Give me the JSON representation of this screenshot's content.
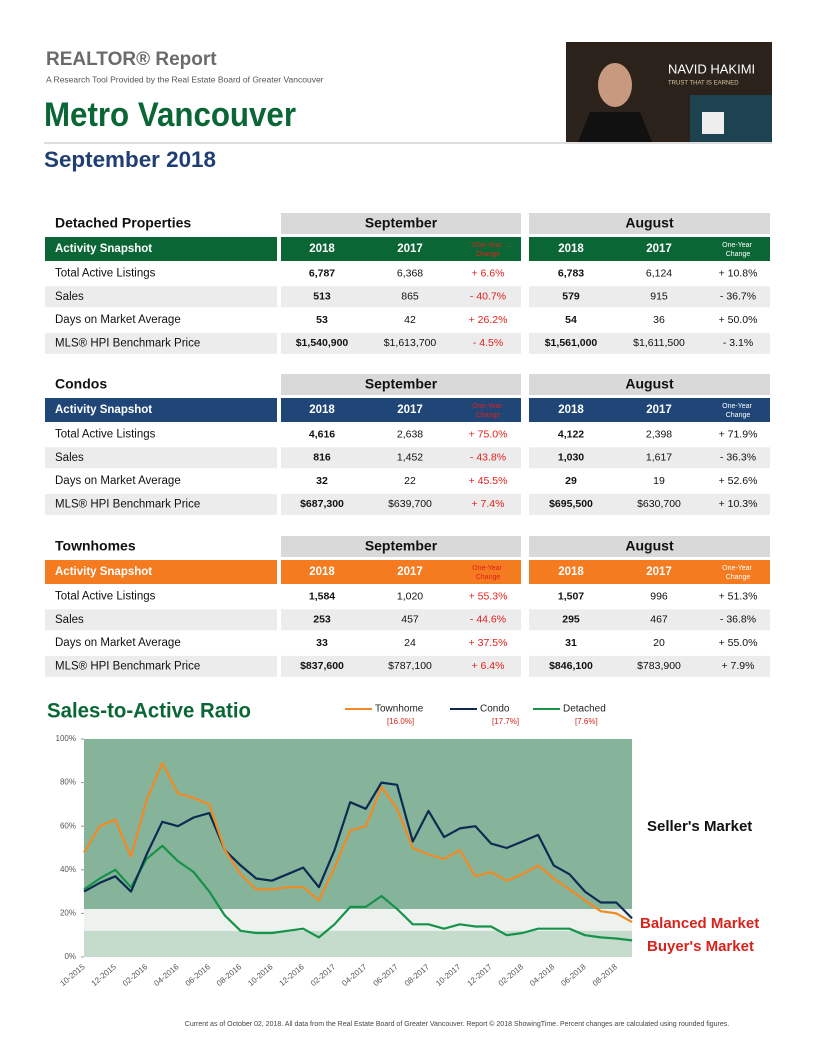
{
  "header": {
    "title": "REALTOR® Report",
    "subtitle": "A Research Tool Provided by the Real Estate Board of Greater Vancouver",
    "region": "Metro Vancouver",
    "period": "September 2018"
  },
  "agent": {
    "name": "NAVID HAKIMI",
    "tagline": "TRUST THAT IS EARNED"
  },
  "groups": [
    "September",
    "August"
  ],
  "columns": [
    "Activity Snapshot",
    "2018",
    "2017",
    "One-Year Change"
  ],
  "row_labels": [
    "Total Active Listings",
    "Sales",
    "Days on Market Average",
    "MLS® HPI Benchmark Price"
  ],
  "tables": [
    {
      "title": "Detached Properties",
      "color": "#0b6636",
      "rows": [
        [
          "6,787",
          "6,368",
          "+ 6.6%",
          "6,783",
          "6,124",
          "+ 10.8%"
        ],
        [
          "513",
          "865",
          "- 40.7%",
          "579",
          "915",
          "- 36.7%"
        ],
        [
          "53",
          "42",
          "+ 26.2%",
          "54",
          "36",
          "+ 50.0%"
        ],
        [
          "$1,540,900",
          "$1,613,700",
          "- 4.5%",
          "$1,561,000",
          "$1,611,500",
          "- 3.1%"
        ]
      ]
    },
    {
      "title": "Condos",
      "color": "#1f4677",
      "rows": [
        [
          "4,616",
          "2,638",
          "+ 75.0%",
          "4,122",
          "2,398",
          "+ 71.9%"
        ],
        [
          "816",
          "1,452",
          "- 43.8%",
          "1,030",
          "1,617",
          "- 36.3%"
        ],
        [
          "32",
          "22",
          "+ 45.5%",
          "29",
          "19",
          "+ 52.6%"
        ],
        [
          "$687,300",
          "$639,700",
          "+ 7.4%",
          "$695,500",
          "$630,700",
          "+ 10.3%"
        ]
      ]
    },
    {
      "title": "Townhomes",
      "color": "#f47b20",
      "rows": [
        [
          "1,584",
          "1,020",
          "+ 55.3%",
          "1,507",
          "996",
          "+ 51.3%"
        ],
        [
          "253",
          "457",
          "- 44.6%",
          "295",
          "467",
          "- 36.8%"
        ],
        [
          "33",
          "24",
          "+ 37.5%",
          "31",
          "20",
          "+ 55.0%"
        ],
        [
          "$837,600",
          "$787,100",
          "+ 6.4%",
          "$846,100",
          "$783,900",
          "+ 7.9%"
        ]
      ]
    }
  ],
  "chart_data": {
    "type": "line",
    "title": "Sales-to-Active Ratio",
    "categories": [
      "10-2015",
      null,
      "12-2015",
      null,
      "02-2016",
      null,
      "04-2016",
      null,
      "06-2016",
      null,
      "08-2016",
      null,
      "10-2016",
      null,
      "12-2016",
      null,
      "02-2017",
      null,
      "04-2017",
      null,
      "06-2017",
      null,
      "08-2017",
      null,
      "10-2017",
      null,
      "12-2017",
      null,
      "02-2018",
      null,
      "04-2018",
      null,
      "06-2018",
      null,
      "08-2018",
      null
    ],
    "series": [
      {
        "name": "Townhome",
        "color": "#f08a24",
        "latest_label": "[16.0%]",
        "values": [
          48,
          60,
          63,
          46,
          72,
          89,
          75,
          73,
          70,
          49,
          38,
          31,
          31,
          32,
          32,
          26,
          41,
          58,
          60,
          78,
          68,
          50,
          47,
          45,
          49,
          37,
          39,
          35,
          38,
          42,
          36,
          31,
          26,
          21,
          20,
          16.0
        ]
      },
      {
        "name": "Condo",
        "color": "#0e2a52",
        "latest_label": "[17.7%]",
        "values": [
          30,
          34,
          37,
          30,
          47,
          62,
          60,
          64,
          66,
          49,
          42,
          36,
          35,
          38,
          41,
          32,
          49,
          71,
          68,
          80,
          79,
          53,
          67,
          55,
          59,
          60,
          52,
          50,
          53,
          56,
          42,
          38,
          30,
          25,
          25,
          17.7
        ]
      },
      {
        "name": "Detached",
        "color": "#17924a",
        "latest_label": "[7.6%]",
        "values": [
          31,
          36,
          40,
          32,
          45,
          51,
          44,
          39,
          30,
          19,
          12,
          11,
          11,
          12,
          13,
          9,
          15,
          23,
          23,
          28,
          22,
          15,
          15,
          13,
          15,
          14,
          14,
          10,
          11,
          13,
          13,
          13,
          10,
          9,
          8.5,
          7.6
        ]
      }
    ],
    "ylim": [
      0,
      100
    ],
    "yticks": [
      {
        "value": 0,
        "label": "0%"
      },
      {
        "value": 20,
        "label": "20%"
      },
      {
        "value": 40,
        "label": "40%"
      },
      {
        "value": 60,
        "label": "60%"
      },
      {
        "value": 80,
        "label": "80%"
      },
      {
        "value": 100,
        "label": "100%"
      }
    ],
    "zones": [
      {
        "label": "Seller's Market",
        "from": 22,
        "to": 100,
        "color": "#86b49a",
        "label_color": "#111111"
      },
      {
        "label": "Balanced Market",
        "from": 12,
        "to": 22,
        "color": "#eef2ef",
        "label_color": "#d9231d"
      },
      {
        "label": "Buyer's Market",
        "from": 0,
        "to": 12,
        "color": "#c5dccd",
        "label_color": "#d9231d"
      }
    ]
  },
  "footer": "Current as of October 02, 2018. All data from the Real Estate Board of Greater Vancouver. Report © 2018 ShowingTime. Percent changes are calculated using rounded figures."
}
